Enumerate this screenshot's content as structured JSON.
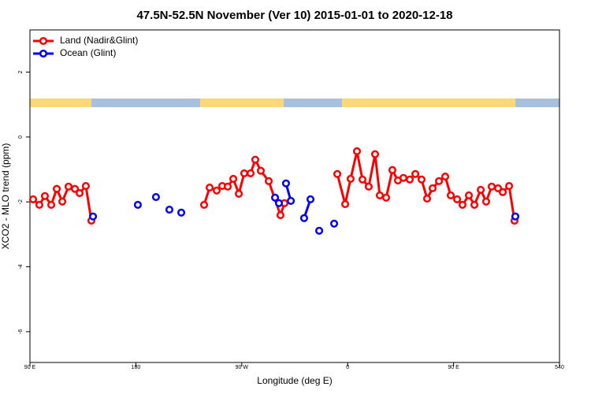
{
  "chart_data": {
    "type": "line",
    "title": "47.5N-52.5N November (Ver 10)   2015-01-01 to 2020-12-18",
    "x_label": "Longitude (deg E)",
    "y_label": "XCO2 - MLO trend (ppm)",
    "xlim": [
      90,
      540
    ],
    "ylim": [
      -6.95,
      3.3
    ],
    "xticks": [
      {
        "value": 90,
        "label": "90 E"
      },
      180,
      {
        "value": 270,
        "label": "90 W"
      },
      {
        "value": 360,
        "label": "0"
      },
      {
        "value": 450,
        "label": "90 E"
      },
      540
    ],
    "yticks": [
      2,
      0,
      -2,
      -4,
      -6
    ],
    "legend": "top-left",
    "series": [
      {
        "name": "Land (Nadir&Glint)",
        "color": "#ff0000",
        "x": [
          92.7,
          98,
          102.7,
          108.1,
          112.8,
          117.5,
          122.8,
          128.2,
          132.2,
          137.5,
          142.2,
          null,
          238.0,
          242.7,
          248.7,
          253.4,
          258.1,
          262.8,
          267.5,
          272.1,
          277.5,
          281.5,
          286.2,
          292.9,
          302.9,
          306.3,
          null,
          351.2,
          357.9,
          362.5,
          367.9,
          372.6,
          377.9,
          383.3,
          387.3,
          392.7,
          398.0,
          402.7,
          407.4,
          412.8,
          417.5,
          422.8,
          427.5,
          432.2,
          437.6,
          442.9,
          447.6,
          453.0,
          457.6,
          463.0,
          467.7,
          473.1,
          477.7,
          482.4,
          487.8,
          491.8,
          497.2,
          501.8
        ],
        "values": [
          -1.92,
          -2.09,
          -1.82,
          -2.09,
          -1.6,
          -1.99,
          -1.53,
          -1.6,
          -1.73,
          -1.51,
          -2.58,
          null,
          -2.09,
          -1.56,
          -1.65,
          -1.51,
          -1.53,
          -1.29,
          -1.75,
          -1.12,
          -1.12,
          -0.7,
          -1.04,
          -1.36,
          -2.41,
          -2.04,
          null,
          -1.14,
          -2.07,
          -1.29,
          -0.44,
          -1.31,
          -1.53,
          -0.53,
          -1.8,
          -1.87,
          -1.02,
          -1.34,
          -1.26,
          -1.31,
          -1.14,
          -1.31,
          -1.9,
          -1.58,
          -1.36,
          -1.22,
          -1.8,
          -1.92,
          -2.09,
          -1.8,
          -2.09,
          -1.63,
          -1.99,
          -1.53,
          -1.58,
          -1.7,
          -1.51,
          -2.58
        ]
      },
      {
        "name": "Ocean (Glint)",
        "color": "#0000ff",
        "x": [
          143.6,
          null,
          181.7,
          null,
          197.1,
          null,
          208.5,
          null,
          218.6,
          null,
          298.3,
          301.6,
          null,
          307.6,
          311.7,
          null,
          323.0,
          328.4,
          null,
          335.8,
          null,
          348.5,
          null,
          502.5
        ],
        "values": [
          -2.45,
          null,
          -2.09,
          null,
          -1.85,
          null,
          -2.24,
          null,
          -2.33,
          null,
          -1.87,
          -2.04,
          null,
          -1.43,
          -1.97,
          null,
          -2.5,
          -1.92,
          null,
          -2.89,
          null,
          -2.67,
          null,
          -2.45
        ]
      }
    ]
  }
}
